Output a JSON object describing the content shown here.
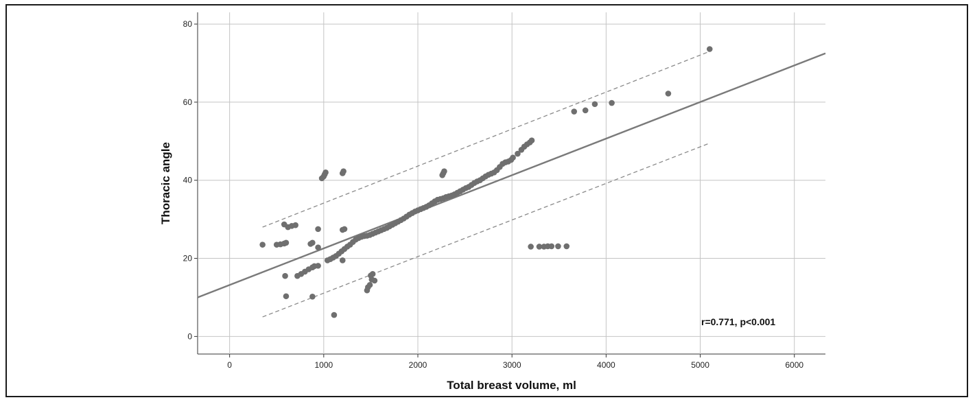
{
  "chart_data": {
    "type": "scatter",
    "title": "",
    "xlabel": "Total breast volume, ml",
    "ylabel": "Thoracic angle",
    "xlim": [
      -340,
      6330
    ],
    "ylim": [
      -4.5,
      83
    ],
    "xticks": [
      0,
      1000,
      2000,
      3000,
      4000,
      5000,
      6000
    ],
    "yticks": [
      0,
      20,
      40,
      60,
      80
    ],
    "grid": true,
    "annotation": "r=0.771, p<0.001",
    "colors": {
      "points": "#6f6f6f",
      "fit": "#7a7a7a",
      "ci": "#8a8a8a",
      "grid": "#c4c4c4",
      "axis": "#333333"
    },
    "fit_line": {
      "x": [
        -340,
        6330
      ],
      "y": [
        10,
        72.5
      ]
    },
    "ci_upper": {
      "x": [
        350,
        5100
      ],
      "y": [
        28,
        73
      ]
    },
    "ci_lower": {
      "x": [
        350,
        5100
      ],
      "y": [
        5,
        49.5
      ]
    },
    "points": [
      [
        350,
        23.5
      ],
      [
        500,
        23.5
      ],
      [
        540,
        23.6
      ],
      [
        580,
        23.8
      ],
      [
        600,
        24
      ],
      [
        590,
        15.5
      ],
      [
        600,
        10.3
      ],
      [
        580,
        28.7
      ],
      [
        620,
        28
      ],
      [
        660,
        28.3
      ],
      [
        700,
        28.5
      ],
      [
        720,
        15.5
      ],
      [
        760,
        16
      ],
      [
        800,
        16.6
      ],
      [
        840,
        17.2
      ],
      [
        880,
        17.7
      ],
      [
        900,
        18
      ],
      [
        940,
        18.1
      ],
      [
        860,
        23.7
      ],
      [
        880,
        24
      ],
      [
        940,
        22.8
      ],
      [
        940,
        27.5
      ],
      [
        880,
        10.2
      ],
      [
        1110,
        5.5
      ],
      [
        980,
        40.5
      ],
      [
        1000,
        41
      ],
      [
        1010,
        41.5
      ],
      [
        1020,
        42
      ],
      [
        1200,
        41.8
      ],
      [
        1210,
        42.3
      ],
      [
        1200,
        27.3
      ],
      [
        1220,
        27.5
      ],
      [
        1200,
        19.5
      ],
      [
        1040,
        19.5
      ],
      [
        1070,
        19.8
      ],
      [
        1100,
        20.2
      ],
      [
        1130,
        20.6
      ],
      [
        1160,
        21.2
      ],
      [
        1190,
        21.8
      ],
      [
        1220,
        22.4
      ],
      [
        1250,
        23
      ],
      [
        1280,
        23.5
      ],
      [
        1310,
        24.2
      ],
      [
        1340,
        24.8
      ],
      [
        1370,
        25.2
      ],
      [
        1400,
        25.5
      ],
      [
        1430,
        25.7
      ],
      [
        1460,
        25.8
      ],
      [
        1490,
        26
      ],
      [
        1520,
        26.3
      ],
      [
        1550,
        26.6
      ],
      [
        1580,
        26.9
      ],
      [
        1610,
        27.2
      ],
      [
        1640,
        27.5
      ],
      [
        1670,
        27.8
      ],
      [
        1700,
        28.2
      ],
      [
        1730,
        28.6
      ],
      [
        1760,
        29
      ],
      [
        1790,
        29.4
      ],
      [
        1820,
        29.8
      ],
      [
        1850,
        30.2
      ],
      [
        1880,
        30.7
      ],
      [
        1910,
        31.2
      ],
      [
        1940,
        31.6
      ],
      [
        1970,
        32
      ],
      [
        2000,
        32.3
      ],
      [
        2030,
        32.6
      ],
      [
        2060,
        32.9
      ],
      [
        2090,
        33.2
      ],
      [
        2120,
        33.6
      ],
      [
        2150,
        34.1
      ],
      [
        2180,
        34.6
      ],
      [
        2210,
        35
      ],
      [
        2240,
        35.2
      ],
      [
        2270,
        35.4
      ],
      [
        2300,
        35.7
      ],
      [
        2330,
        35.9
      ],
      [
        2360,
        36.1
      ],
      [
        2390,
        36.4
      ],
      [
        2420,
        36.8
      ],
      [
        2450,
        37.2
      ],
      [
        2480,
        37.6
      ],
      [
        2510,
        38
      ],
      [
        2540,
        38.3
      ],
      [
        2570,
        38.8
      ],
      [
        2600,
        39.3
      ],
      [
        2630,
        39.7
      ],
      [
        2660,
        40
      ],
      [
        2690,
        40.5
      ],
      [
        2720,
        41
      ],
      [
        2750,
        41.4
      ],
      [
        2780,
        41.7
      ],
      [
        2810,
        42
      ],
      [
        2840,
        42.6
      ],
      [
        2870,
        43.4
      ],
      [
        2900,
        44.2
      ],
      [
        2930,
        44.6
      ],
      [
        2960,
        44.8
      ],
      [
        2990,
        45.2
      ],
      [
        3010,
        45.8
      ],
      [
        3060,
        46.8
      ],
      [
        3100,
        47.8
      ],
      [
        3130,
        48.6
      ],
      [
        3160,
        49.2
      ],
      [
        3190,
        49.7
      ],
      [
        3210,
        50.2
      ],
      [
        2260,
        41.3
      ],
      [
        2270,
        41.8
      ],
      [
        2280,
        42.3
      ],
      [
        1460,
        11.8
      ],
      [
        1470,
        12.6
      ],
      [
        1490,
        13.2
      ],
      [
        1510,
        14.6
      ],
      [
        1500,
        15.6
      ],
      [
        1520,
        16
      ],
      [
        1540,
        14.3
      ],
      [
        3200,
        23
      ],
      [
        3290,
        23
      ],
      [
        3340,
        23
      ],
      [
        3380,
        23.1
      ],
      [
        3420,
        23.1
      ],
      [
        3490,
        23.1
      ],
      [
        3580,
        23.1
      ],
      [
        3660,
        57.6
      ],
      [
        3780,
        57.9
      ],
      [
        3880,
        59.5
      ],
      [
        4060,
        59.8
      ],
      [
        4660,
        62.2
      ],
      [
        5100,
        73.6
      ]
    ]
  }
}
